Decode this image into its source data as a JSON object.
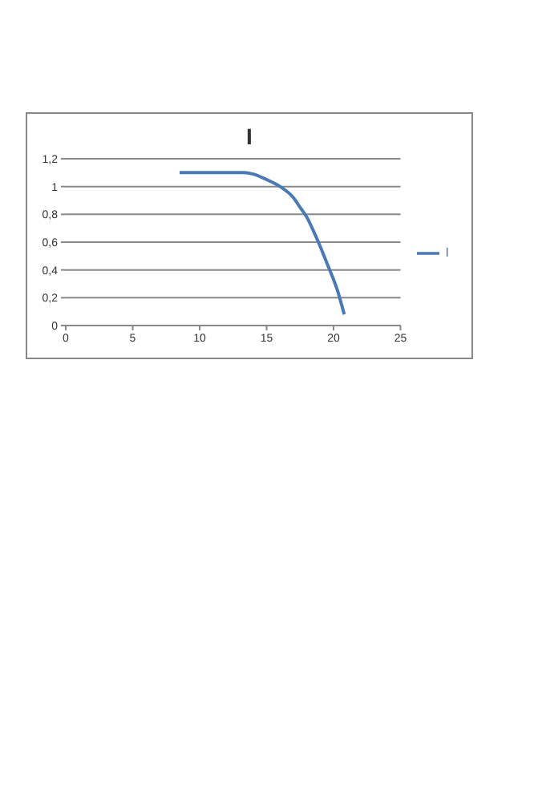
{
  "chart_data": {
    "type": "line",
    "title": "I",
    "x": [
      8.5,
      10,
      12,
      13.3,
      14,
      15,
      16,
      17,
      17.5,
      18,
      18.5,
      19,
      19.5,
      20,
      20.3,
      20.6,
      20.8
    ],
    "series": [
      {
        "name": "I",
        "color": "#4a7ab5",
        "values": [
          1.1,
          1.1,
          1.1,
          1.1,
          1.09,
          1.05,
          1.0,
          0.92,
          0.85,
          0.78,
          0.68,
          0.57,
          0.45,
          0.33,
          0.25,
          0.15,
          0.08
        ]
      }
    ],
    "xlim": [
      0,
      25
    ],
    "xticks": [
      0,
      5,
      10,
      15,
      20,
      25
    ],
    "ylim": [
      0,
      1.2
    ],
    "yticks": [
      0,
      {
        "value": 0.2,
        "label": "0,2"
      },
      {
        "value": 0.4,
        "label": "0,4"
      },
      {
        "value": 0.6,
        "label": "0,6"
      },
      {
        "value": 0.8,
        "label": "0,8"
      },
      1,
      {
        "value": 1.2,
        "label": "1,2"
      }
    ],
    "grid": "y",
    "legend": "right",
    "marker": "none",
    "line_style": "solid"
  }
}
